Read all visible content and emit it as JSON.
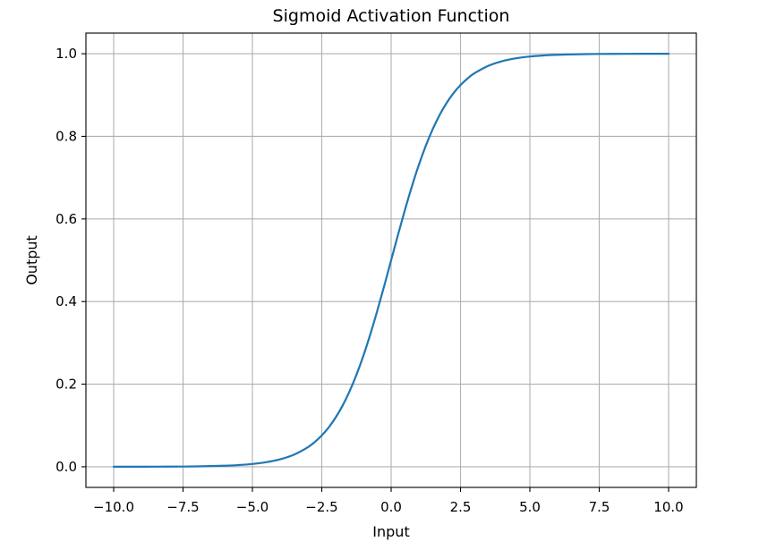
{
  "chart_data": {
    "type": "line",
    "title": "Sigmoid Activation Function",
    "xlabel": "Input",
    "ylabel": "Output",
    "xlim": [
      -11.0,
      11.0
    ],
    "ylim": [
      -0.05,
      1.05
    ],
    "xticks": [
      -10.0,
      -7.5,
      -5.0,
      -2.5,
      0.0,
      2.5,
      5.0,
      7.5,
      10.0
    ],
    "xtick_labels": [
      "−10.0",
      "−7.5",
      "−5.0",
      "−2.5",
      "0.0",
      "2.5",
      "5.0",
      "7.5",
      "10.0"
    ],
    "yticks": [
      0.0,
      0.2,
      0.4,
      0.6,
      0.8,
      1.0
    ],
    "ytick_labels": [
      "0.0",
      "0.2",
      "0.4",
      "0.6",
      "0.8",
      "1.0"
    ],
    "grid": true,
    "series": [
      {
        "color": "#1f77b4",
        "x": [
          -10.0,
          -9.0,
          -8.0,
          -7.0,
          -6.0,
          -5.5,
          -5.0,
          -4.5,
          -4.0,
          -3.5,
          -3.0,
          -2.75,
          -2.5,
          -2.25,
          -2.0,
          -1.75,
          -1.5,
          -1.25,
          -1.0,
          -0.75,
          -0.5,
          -0.25,
          0.0,
          0.25,
          0.5,
          0.75,
          1.0,
          1.25,
          1.5,
          1.75,
          2.0,
          2.25,
          2.5,
          2.75,
          3.0,
          3.5,
          4.0,
          4.5,
          5.0,
          5.5,
          6.0,
          7.0,
          8.0,
          9.0,
          10.0
        ],
        "y": [
          0.0,
          0.0001,
          0.0003,
          0.0009,
          0.0025,
          0.0041,
          0.0067,
          0.011,
          0.018,
          0.0293,
          0.0474,
          0.0601,
          0.0759,
          0.0953,
          0.1192,
          0.148,
          0.1824,
          0.2227,
          0.2689,
          0.3208,
          0.3775,
          0.4378,
          0.5,
          0.5622,
          0.6225,
          0.6792,
          0.7311,
          0.7773,
          0.8176,
          0.852,
          0.8808,
          0.9047,
          0.9241,
          0.9399,
          0.9526,
          0.9707,
          0.982,
          0.989,
          0.9933,
          0.9959,
          0.9975,
          0.9991,
          0.9997,
          0.9999,
          1.0
        ]
      }
    ]
  }
}
